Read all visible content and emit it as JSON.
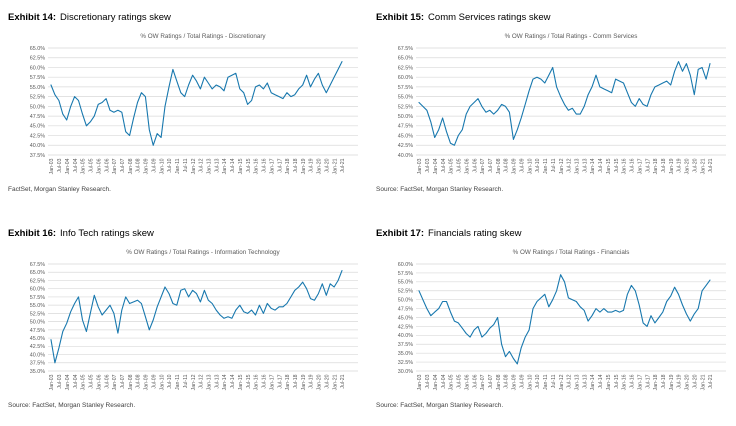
{
  "page": {
    "background": "#FFFFFF"
  },
  "colors": {
    "line": "#1878AE",
    "grid": "#D9D9D9",
    "axis_text": "#595959",
    "title_text": "#595959",
    "source_text": "#404040",
    "header_text": "#000000"
  },
  "chart_data": [
    {
      "type": "line",
      "exhibit_label": "Exhibit 14:",
      "exhibit_title": "Discretionary ratings skew",
      "title": "% OW Ratings / Total Ratings - Discretionary",
      "source": "FactSet, Morgan Stanley Research.",
      "ylim": [
        37.5,
        65.0
      ],
      "ytick_step": 2.5,
      "ytick_format": "percent-1dp",
      "grid": "horizontal",
      "legend": "none",
      "x_tick_labels": [
        "Jan-03",
        "Jul-03",
        "Jan-04",
        "Jul-04",
        "Jan-05",
        "Jul-05",
        "Jan-06",
        "Jul-06",
        "Jan-07",
        "Jul-07",
        "Jan-08",
        "Jul-08",
        "Jan-09",
        "Jul-09",
        "Jan-10",
        "Jul-10",
        "Jan-11",
        "Jul-11",
        "Jan-12",
        "Jul-12",
        "Jan-13",
        "Jul-13",
        "Jan-14",
        "Jul-14",
        "Jan-15",
        "Jul-15",
        "Jan-16",
        "Jul-16",
        "Jan-17",
        "Jul-17",
        "Jan-18",
        "Jul-18",
        "Jan-19",
        "Jul-19",
        "Jan-20",
        "Jul-20",
        "Jan-21",
        "Jul-21"
      ],
      "values": [
        55.5,
        53,
        51.5,
        48,
        46.5,
        50,
        52.5,
        51.5,
        48,
        45,
        46,
        47.5,
        50.5,
        51,
        52,
        49,
        48.5,
        49,
        48.5,
        43.5,
        42.5,
        47,
        51,
        53.5,
        52.5,
        44,
        40,
        43,
        42,
        50,
        55,
        59.5,
        56.5,
        53.5,
        52.5,
        55.5,
        58,
        56.5,
        54.5,
        57.5,
        56,
        54.5,
        55.5,
        55,
        54,
        57.5,
        58,
        58.5,
        54.5,
        53.5,
        50.5,
        51.5,
        55,
        55.5,
        54.5,
        56,
        53.5,
        53,
        52.5,
        52,
        53.5,
        52.5,
        53,
        54.5,
        55.5,
        58,
        55,
        57,
        58.5,
        55.5,
        53.5,
        55.5,
        57.5,
        59.5,
        61.5
      ]
    },
    {
      "type": "line",
      "exhibit_label": "Exhibit 15:",
      "exhibit_title": "Comm Services ratings skew",
      "title": "% OW Ratings / Total Ratings - Comm Services",
      "source": "Source: FactSet, Morgan Stanley Research.",
      "ylim": [
        40.0,
        67.5
      ],
      "ytick_step": 2.5,
      "ytick_format": "percent-1dp",
      "grid": "horizontal",
      "legend": "none",
      "x_tick_labels": [
        "Jan-03",
        "Jul-03",
        "Jan-04",
        "Jul-04",
        "Jan-05",
        "Jul-05",
        "Jan-06",
        "Jul-06",
        "Jan-07",
        "Jul-07",
        "Jan-08",
        "Jul-08",
        "Jan-09",
        "Jul-09",
        "Jan-10",
        "Jul-10",
        "Jan-11",
        "Jul-11",
        "Jan-12",
        "Jul-12",
        "Jan-13",
        "Jul-13",
        "Jan-14",
        "Jul-14",
        "Jan-15",
        "Jul-15",
        "Jan-16",
        "Jul-16",
        "Jan-17",
        "Jul-17",
        "Jan-18",
        "Jul-18",
        "Jan-19",
        "Jul-19",
        "Jan-20",
        "Jul-20",
        "Jan-21",
        "Jul-21"
      ],
      "values": [
        53.5,
        52.5,
        51.5,
        48.5,
        44.5,
        46.5,
        49.5,
        46,
        43,
        42.5,
        45,
        46.5,
        50.5,
        52.5,
        53.5,
        54.5,
        52.5,
        51,
        51.5,
        50.5,
        51.5,
        53,
        52.5,
        51,
        44,
        46.5,
        49.5,
        53,
        56.5,
        59.5,
        60,
        59.5,
        58.5,
        60.5,
        62.5,
        57.5,
        55,
        53,
        51.5,
        52,
        50.5,
        50.5,
        52.5,
        55.5,
        57.5,
        60.5,
        57.5,
        57,
        56.5,
        56,
        59.5,
        59,
        58.5,
        56,
        53.5,
        52.5,
        54.5,
        53,
        52.5,
        55.5,
        57.5,
        58,
        58.5,
        59,
        58,
        61.5,
        64,
        61.5,
        63.5,
        60.5,
        55.5,
        62,
        62.5,
        59.5,
        63.5
      ]
    },
    {
      "type": "line",
      "exhibit_label": "Exhibit 16:",
      "exhibit_title": "Info Tech ratings skew",
      "title": "% OW Ratings / Total Ratings - Information Technology",
      "source": "Source: FactSet, Morgan Stanley Research.",
      "ylim": [
        35.0,
        67.5
      ],
      "ytick_step": 2.5,
      "ytick_format": "percent-1dp",
      "grid": "horizontal",
      "legend": "none",
      "x_tick_labels": [
        "Jan-03",
        "Jul-03",
        "Jan-04",
        "Jul-04",
        "Jan-05",
        "Jul-05",
        "Jan-06",
        "Jul-06",
        "Jan-07",
        "Jul-07",
        "Jan-08",
        "Jul-08",
        "Jan-09",
        "Jul-09",
        "Jan-10",
        "Jul-10",
        "Jan-11",
        "Jul-11",
        "Jan-12",
        "Jul-12",
        "Jan-13",
        "Jul-13",
        "Jan-14",
        "Jul-14",
        "Jan-15",
        "Jul-15",
        "Jan-16",
        "Jul-16",
        "Jan-17",
        "Jul-17",
        "Jan-18",
        "Jul-18",
        "Jan-19",
        "Jul-19",
        "Jan-20",
        "Jul-20",
        "Jan-21",
        "Jul-21"
      ],
      "values": [
        44.5,
        37.5,
        42,
        47,
        49.5,
        53,
        55.5,
        57.5,
        50.5,
        47,
        52.5,
        58,
        54.5,
        52,
        53.5,
        55,
        52.5,
        46.5,
        53.5,
        57.5,
        55.5,
        56,
        56.5,
        55.5,
        51.5,
        47.5,
        50.5,
        54.5,
        57.5,
        60.5,
        58.5,
        55.5,
        55,
        59.5,
        60,
        57.5,
        59.5,
        58.5,
        56,
        59.5,
        56.5,
        55.5,
        53.5,
        52,
        51,
        51.5,
        51,
        53.5,
        55,
        53,
        52.5,
        53.5,
        52,
        55,
        52.5,
        55.5,
        54,
        53.5,
        54.5,
        54.5,
        55.5,
        57.5,
        59.5,
        60.5,
        62,
        60,
        57,
        56.5,
        58.5,
        61.5,
        58,
        61.5,
        60.5,
        62.5,
        65.5
      ]
    },
    {
      "type": "line",
      "exhibit_label": "Exhibit 17:",
      "exhibit_title": "Financials rating skew",
      "title": "% OW Ratings / Total Ratings - Financials",
      "source": "Source: FactSet, Morgan Stanley Research.",
      "ylim": [
        30.0,
        60.0
      ],
      "ytick_step": 2.5,
      "ytick_format": "percent-1dp",
      "grid": "horizontal",
      "legend": "none",
      "x_tick_labels": [
        "Jan-03",
        "Jul-03",
        "Jan-04",
        "Jul-04",
        "Jan-05",
        "Jul-05",
        "Jan-06",
        "Jul-06",
        "Jan-07",
        "Jul-07",
        "Jan-08",
        "Jul-08",
        "Jan-09",
        "Jul-09",
        "Jan-10",
        "Jul-10",
        "Jan-11",
        "Jul-11",
        "Jan-12",
        "Jul-12",
        "Jan-13",
        "Jul-13",
        "Jan-14",
        "Jul-14",
        "Jan-15",
        "Jul-15",
        "Jan-16",
        "Jul-16",
        "Jan-17",
        "Jul-17",
        "Jan-18",
        "Jul-18",
        "Jan-19",
        "Jul-19",
        "Jan-20",
        "Jul-20",
        "Jan-21",
        "Jul-21"
      ],
      "values": [
        52.5,
        50,
        47.5,
        45.5,
        46.5,
        47.5,
        49.5,
        49.5,
        46.5,
        44,
        43.5,
        42,
        40.5,
        39.5,
        41.5,
        42.5,
        39.5,
        40.5,
        42,
        43,
        45,
        37.5,
        34,
        35.5,
        33.5,
        32,
        36.5,
        39.5,
        41.5,
        47.5,
        49.5,
        50.5,
        51.5,
        48,
        50,
        52.5,
        57,
        55,
        50.5,
        50,
        49.5,
        48,
        47,
        44,
        45.5,
        47.5,
        46.5,
        47.5,
        46.5,
        46.5,
        47,
        46.5,
        47,
        51.5,
        54,
        52.5,
        48.5,
        43.5,
        42.5,
        45.5,
        43.5,
        45,
        46.5,
        49.5,
        51,
        53.5,
        51.5,
        48.5,
        46,
        44,
        46,
        47.5,
        52.5,
        54,
        55.5
      ]
    }
  ]
}
